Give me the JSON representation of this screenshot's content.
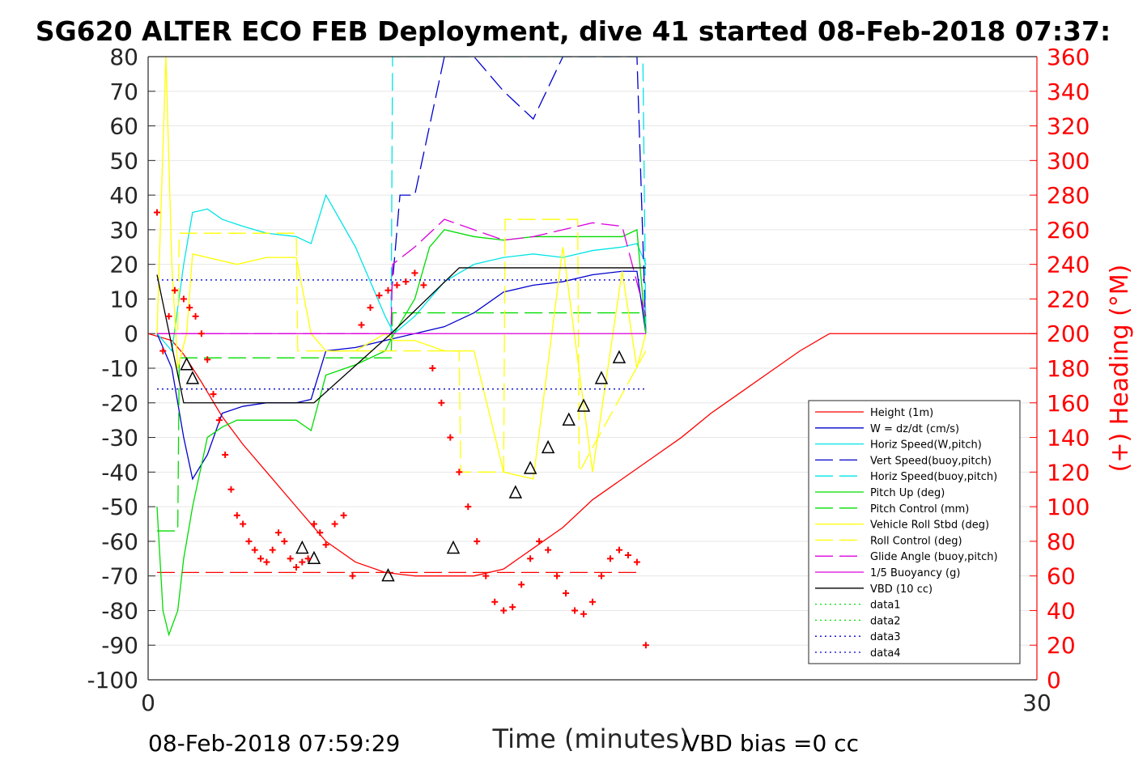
{
  "chart_data": {
    "type": "line",
    "title": "SG620 ALTER ECO FEB Deployment, dive 41 started 08-Feb-2018 07:37:",
    "xlabel": "Time (minutes)",
    "ylabel": "",
    "y2label": "(+) Heading (°M)",
    "xlim": [
      0,
      30
    ],
    "ylim": [
      -100,
      80
    ],
    "y2lim": [
      0,
      360
    ],
    "grid": "horizontal",
    "legend_position": "lower-right",
    "x_ticks": [
      "0",
      "30"
    ],
    "y_ticks": [
      "80",
      "70",
      "60",
      "50",
      "40",
      "30",
      "20",
      "10",
      "0",
      "-10",
      "-20",
      "-30",
      "-40",
      "-50",
      "-60",
      "-70",
      "-80",
      "-90",
      "-100"
    ],
    "y2_ticks": [
      "360",
      "340",
      "320",
      "300",
      "280",
      "260",
      "240",
      "220",
      "200",
      "180",
      "160",
      "140",
      "120",
      "100",
      "80",
      "60",
      "40",
      "20",
      "0"
    ],
    "footer_left": "08-Feb-2018 07:59:29",
    "footer_right": "VBD bias =0 cc",
    "colors": {
      "red": "#ff0000",
      "blue": "#0000cc",
      "cyan": "#00e5e5",
      "green": "#00dd00",
      "yellow": "#ffff00",
      "magenta": "#dd00dd",
      "black": "#000000",
      "heading_axis": "#ff0000"
    },
    "series": [
      {
        "name": "Height (1m)",
        "style": "solid",
        "color": "#ff0000",
        "x": [
          0,
          0.8,
          1.2,
          1.8,
          2.5,
          3.2,
          4,
          5,
          6,
          7,
          8,
          9,
          10,
          11,
          12,
          13,
          14,
          15,
          16,
          17,
          18,
          19,
          20,
          21,
          22,
          23,
          24,
          25,
          26,
          27,
          28,
          29,
          30
        ],
        "y": [
          0,
          -2,
          -6,
          -14,
          -24,
          -32,
          -40,
          -50,
          -60,
          -66,
          -69,
          -70,
          -70,
          -70,
          -68,
          -62,
          -56,
          -48,
          -42,
          -36,
          -30,
          -23,
          -17,
          -11,
          -5,
          0,
          0,
          0,
          0,
          0,
          0,
          0,
          0
        ]
      },
      {
        "name": "W = dz/dt (cm/s)",
        "style": "solid",
        "color": "#0000cc",
        "x": [
          0.3,
          0.8,
          1.2,
          1.5,
          2.0,
          2.5,
          3.2,
          4,
          5,
          5.5,
          6,
          7,
          8,
          9,
          10,
          11,
          12,
          13,
          14,
          15,
          16,
          16.5,
          16.8
        ],
        "y": [
          0,
          -10,
          -30,
          -42,
          -35,
          -23,
          -21,
          -20,
          -20,
          -19,
          -5,
          -4,
          -2,
          0,
          2,
          6,
          12,
          14,
          15,
          17,
          18,
          18,
          0
        ]
      },
      {
        "name": "Horiz Speed(W,pitch)",
        "style": "solid",
        "color": "#00e5e5",
        "x": [
          0.3,
          0.8,
          1.2,
          1.5,
          2.0,
          2.5,
          3.2,
          4,
          5,
          5.5,
          6,
          7,
          8,
          8.3,
          9,
          10,
          11,
          12,
          13,
          14,
          15,
          16,
          16.5,
          16.8
        ],
        "y": [
          0,
          -5,
          20,
          35,
          36,
          33,
          31,
          29,
          28,
          26,
          40,
          25,
          5,
          0,
          5,
          15,
          20,
          22,
          23,
          22,
          24,
          25,
          26,
          20
        ]
      },
      {
        "name": "Vert Speed(buoy,pitch)",
        "style": "dashed",
        "color": "#0000cc",
        "x": [
          8.2,
          8.5,
          9,
          9.5,
          10,
          11,
          12,
          13,
          14,
          15,
          16,
          16.5,
          16.8
        ],
        "y": [
          10,
          40,
          40,
          60,
          80,
          80,
          70,
          62,
          80,
          80,
          80,
          80,
          0
        ]
      },
      {
        "name": "Horiz Speed(buoy,pitch)",
        "style": "dashed",
        "color": "#00e5e5",
        "x": [
          8.2,
          8.25,
          16.7,
          16.8
        ],
        "y": [
          0,
          80,
          80,
          0
        ]
      },
      {
        "name": "Pitch Up (deg)",
        "style": "solid",
        "color": "#00dd00",
        "x": [
          0.3,
          0.5,
          0.7,
          1.0,
          1.2,
          1.5,
          2.0,
          2.5,
          3,
          4,
          5,
          5.5,
          6,
          7,
          8,
          8.3,
          9,
          9.5,
          10,
          11,
          12,
          13,
          14,
          15,
          16,
          16.5,
          16.8
        ],
        "y": [
          -50,
          -80,
          -87,
          -80,
          -65,
          -50,
          -30,
          -27,
          -25,
          -25,
          -25,
          -28,
          -12,
          -9,
          -5,
          0,
          10,
          25,
          30,
          28,
          27,
          28,
          28,
          28,
          28,
          30,
          0
        ]
      },
      {
        "name": "Pitch Control (mm)",
        "style": "dashed",
        "color": "#00dd00",
        "x": [
          0.3,
          1.0,
          1.05,
          5.6,
          5.65,
          8.2,
          8.25,
          16.8
        ],
        "y": [
          -57,
          -57,
          -7,
          -7,
          -7,
          -7,
          6,
          6
        ]
      },
      {
        "name": "Vehicle Roll Stbd (deg)",
        "style": "solid",
        "color": "#ffff00",
        "x": [
          0.3,
          0.6,
          0.8,
          1.0,
          1.3,
          1.5,
          2,
          3,
          4,
          5,
          5.5,
          6,
          7,
          8,
          8.3,
          9,
          10,
          11,
          12,
          13,
          14,
          15,
          16,
          16.5,
          16.8
        ],
        "y": [
          0,
          80,
          20,
          -10,
          0,
          23,
          22,
          20,
          22,
          22,
          0,
          -5,
          -5,
          0,
          -2,
          -2,
          -5,
          -5,
          -40,
          -42,
          25,
          -40,
          18,
          -10,
          0
        ]
      },
      {
        "name": "Roll Control (deg)",
        "style": "dashed",
        "color": "#ffff00",
        "x": [
          0.3,
          1.0,
          1.05,
          5.0,
          5.05,
          10.5,
          10.55,
          12.0,
          12.05,
          14.5,
          14.55,
          16.8
        ],
        "y": [
          0,
          0,
          29,
          29,
          -5,
          -5,
          -40,
          -40,
          33,
          33,
          -40,
          -5
        ]
      },
      {
        "name": "Glide Angle (buoy,pitch)",
        "style": "dashed",
        "color": "#dd00dd",
        "x": [
          0.3,
          8.2,
          8.25,
          9,
          10,
          11,
          12,
          13,
          14,
          15,
          16,
          16.8
        ],
        "y": [
          0,
          0,
          20,
          25,
          33,
          30,
          27,
          28,
          30,
          32,
          31,
          5
        ]
      },
      {
        "name": "1/5 Buoyancy (g)",
        "style": "solid",
        "color": "#dd00dd",
        "x": [
          0.3,
          16.8
        ],
        "y": [
          0,
          0
        ]
      },
      {
        "name": "VBD (10 cc)",
        "style": "solid",
        "color": "#000000",
        "x": [
          0.3,
          1.2,
          5.6,
          8.2,
          10.5,
          16.8
        ],
        "y": [
          17,
          -20,
          -20,
          0,
          19,
          19
        ]
      },
      {
        "name": "data1",
        "style": "dotted",
        "color": "#00dd00",
        "x": [],
        "y": []
      },
      {
        "name": "data2",
        "style": "dotted",
        "color": "#00dd00",
        "x": [],
        "y": []
      },
      {
        "name": "data3",
        "style": "dotted",
        "color": "#0000cc",
        "x": [
          0.3,
          16.8
        ],
        "y": [
          -16,
          -16
        ]
      },
      {
        "name": "data4",
        "style": "dotted",
        "color": "#0000cc",
        "x": [
          0.3,
          16.8
        ],
        "y": [
          15.5,
          15.5
        ]
      }
    ],
    "reference_lines": [
      {
        "style": "dashed",
        "color": "#ff0000",
        "x": [
          0.3,
          16.5
        ],
        "y": [
          -69,
          -69
        ]
      }
    ],
    "heading_points": {
      "axis": "y2",
      "color": "#ff0000",
      "marker": "+",
      "x": [
        0.3,
        0.5,
        0.7,
        0.9,
        1.2,
        1.4,
        1.6,
        1.8,
        2.0,
        2.2,
        2.4,
        2.6,
        2.8,
        3.0,
        3.2,
        3.4,
        3.6,
        3.8,
        4.0,
        4.2,
        4.4,
        4.6,
        4.8,
        5.0,
        5.2,
        5.4,
        5.6,
        5.8,
        6.0,
        6.3,
        6.6,
        6.9,
        7.2,
        7.5,
        7.8,
        8.1,
        8.4,
        8.7,
        9.0,
        9.3,
        9.6,
        9.9,
        10.2,
        10.5,
        10.8,
        11.1,
        11.4,
        11.7,
        12.0,
        12.3,
        12.6,
        12.9,
        13.2,
        13.5,
        13.8,
        14.1,
        14.4,
        14.7,
        15.0,
        15.3,
        15.6,
        15.9,
        16.2,
        16.5,
        16.8
      ],
      "y": [
        270,
        190,
        210,
        225,
        220,
        215,
        210,
        200,
        185,
        165,
        150,
        130,
        110,
        95,
        90,
        80,
        75,
        70,
        68,
        75,
        85,
        80,
        70,
        65,
        68,
        70,
        90,
        85,
        78,
        90,
        95,
        60,
        205,
        215,
        222,
        225,
        228,
        230,
        235,
        228,
        180,
        160,
        140,
        120,
        100,
        80,
        60,
        45,
        40,
        42,
        55,
        70,
        80,
        75,
        60,
        50,
        40,
        38,
        45,
        60,
        70,
        75,
        72,
        68,
        20
      ]
    },
    "triangle_markers": {
      "x": [
        1.3,
        1.5,
        5.2,
        5.6,
        8.1,
        10.3,
        12.4,
        12.9,
        13.5,
        14.2,
        14.7,
        15.3,
        15.9
      ],
      "y": [
        -9,
        -13,
        -62,
        -65,
        -70,
        -62,
        -46,
        -39,
        -33,
        -25,
        -21,
        -13,
        -7
      ]
    }
  }
}
